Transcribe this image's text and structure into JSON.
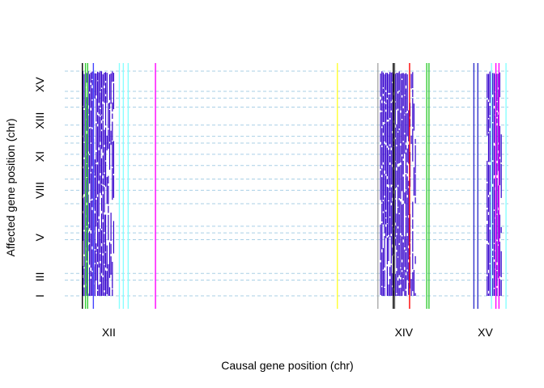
{
  "chart_data": {
    "type": "scatter",
    "title": "",
    "xlabel": "Causal gene position (chr)",
    "ylabel": "Affected gene position (chr)",
    "x_ticks": [
      {
        "label": "XII",
        "pos": 0.1
      },
      {
        "label": "XIV",
        "pos": 0.77
      },
      {
        "label": "XV",
        "pos": 0.955
      }
    ],
    "y_ticks": [
      {
        "label": "I",
        "pos": 0.0
      },
      {
        "label": "III",
        "pos": 0.085
      },
      {
        "label": "V",
        "pos": 0.26
      },
      {
        "label": "VIII",
        "pos": 0.47
      },
      {
        "label": "XI",
        "pos": 0.62
      },
      {
        "label": "XIII",
        "pos": 0.78
      },
      {
        "label": "XV",
        "pos": 0.94
      }
    ],
    "x_range": [
      0,
      1
    ],
    "y_range": [
      0,
      1
    ],
    "horizontal_reference_lines": [
      0.0,
      0.07,
      0.1,
      0.25,
      0.28,
      0.31,
      0.41,
      0.47,
      0.52,
      0.58,
      0.63,
      0.68,
      0.71,
      0.76,
      0.84,
      0.88,
      0.91,
      1.0
    ],
    "horizontal_line_color": "#a9cfe6",
    "vertical_lines": [
      {
        "x": 0.04,
        "color": "#000000"
      },
      {
        "x": 0.047,
        "color": "#33cc33"
      },
      {
        "x": 0.052,
        "color": "#33cc33"
      },
      {
        "x": 0.065,
        "color": "#4444ff"
      },
      {
        "x": 0.124,
        "color": "#88ffff"
      },
      {
        "x": 0.133,
        "color": "#88ffff"
      },
      {
        "x": 0.144,
        "color": "#88ffff"
      },
      {
        "x": 0.206,
        "color": "#ff00ff"
      },
      {
        "x": 0.619,
        "color": "#ffff33"
      },
      {
        "x": 0.711,
        "color": "#aaaaaa"
      },
      {
        "x": 0.746,
        "color": "#000000"
      },
      {
        "x": 0.749,
        "color": "#666666"
      },
      {
        "x": 0.783,
        "color": "#ff0000"
      },
      {
        "x": 0.822,
        "color": "#33cc33"
      },
      {
        "x": 0.827,
        "color": "#33cc33"
      },
      {
        "x": 0.929,
        "color": "#3333cc"
      },
      {
        "x": 0.938,
        "color": "#3333cc"
      },
      {
        "x": 0.969,
        "color": "#88ffff"
      },
      {
        "x": 0.979,
        "color": "#ff00ff"
      },
      {
        "x": 0.986,
        "color": "#ff00ff"
      },
      {
        "x": 1.002,
        "color": "#88ffff"
      }
    ],
    "point_clusters": [
      {
        "x_start": 0.04,
        "x_end": 0.11,
        "color": "#3300cc"
      },
      {
        "x_start": 0.716,
        "x_end": 0.795,
        "color": "#3300cc"
      },
      {
        "x_start": 0.958,
        "x_end": 0.99,
        "color": "#3300cc"
      }
    ]
  }
}
